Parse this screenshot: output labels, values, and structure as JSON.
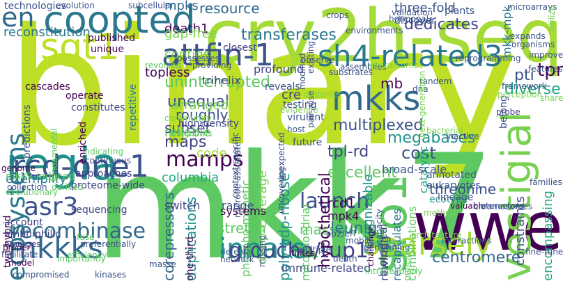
{
  "words": [
    {
      "text": "binary",
      "color": "#bddf26"
    },
    {
      "text": "mkk7",
      "color": "#5ec962"
    },
    {
      "text": "cry2h-seq",
      "color": "#a5db36"
    },
    {
      "text": "wwe",
      "color": "#440154"
    },
    {
      "text": "coopted",
      "color": "#2a788e"
    },
    {
      "text": "regia",
      "color": "#21918c"
    },
    {
      "text": "sgt1",
      "color": "#bddf26"
    },
    {
      "text": "attfin-1",
      "color": "#3b528b"
    },
    {
      "text": "sh4-related3",
      "color": "#2a788e"
    },
    {
      "text": "rcd-one1",
      "color": "#3b528b"
    },
    {
      "text": "mkks",
      "color": "#31688e"
    },
    {
      "text": "mkkks",
      "color": "#31688e"
    },
    {
      "text": "innate",
      "color": "#21918c"
    },
    {
      "text": "sro1",
      "color": "#5ec962"
    },
    {
      "text": "vestigial",
      "color": "#7ad151"
    },
    {
      "text": "sparsely",
      "color": "#a5db36"
    },
    {
      "text": "groucho/tup1",
      "color": "#414487"
    },
    {
      "text": "asr3",
      "color": "#3b528b"
    },
    {
      "text": "ecosystems",
      "color": "#2a788e"
    },
    {
      "text": "recombinase",
      "color": "#31688e"
    },
    {
      "text": "launch",
      "color": "#3b528b"
    },
    {
      "text": "mamps",
      "color": "#440154"
    },
    {
      "text": "en",
      "color": "#31688e"
    },
    {
      "text": "uninterrupted",
      "color": "#5ec962"
    },
    {
      "text": "unequal",
      "color": "#3b528b"
    },
    {
      "text": "megabases",
      "color": "#21918c"
    },
    {
      "text": "excellent",
      "color": "#5ec962"
    },
    {
      "text": "multiplexed",
      "color": "#3b528b"
    },
    {
      "text": "hypothetical",
      "color": "#440154"
    },
    {
      "text": "threonine",
      "color": "#3b528b"
    },
    {
      "text": "centromere",
      "color": "#31688e"
    },
    {
      "text": "corepressors",
      "color": "#31688e"
    },
    {
      "text": "duplications",
      "color": "#21918c"
    },
    {
      "text": "massively",
      "color": "#5ec962"
    },
    {
      "text": "leunig",
      "color": "#2a788e"
    },
    {
      "text": "tpl-rd",
      "color": "#414487"
    },
    {
      "text": "cost",
      "color": "#3b528b"
    },
    {
      "text": "transferases",
      "color": "#2a788e"
    },
    {
      "text": "mpks",
      "color": "#31688e"
    },
    {
      "text": "death1",
      "color": "#440154"
    },
    {
      "text": "resource",
      "color": "#31688e"
    },
    {
      "text": "three-fold",
      "color": "#3b528b"
    },
    {
      "text": "dedicates",
      "color": "#414487"
    },
    {
      "text": "reconstitution",
      "color": "#2a788e"
    },
    {
      "text": "technologies",
      "color": "#3b528b"
    },
    {
      "text": "exemplify",
      "color": "#2a788e"
    },
    {
      "text": "subset",
      "color": "#414487"
    },
    {
      "text": "maps",
      "color": "#414487"
    },
    {
      "text": "roughly",
      "color": "#3b528b"
    },
    {
      "text": "arranged",
      "color": "#7ad151"
    },
    {
      "text": "reliable",
      "color": "#5ec962"
    },
    {
      "text": "topless",
      "color": "#440154"
    },
    {
      "text": "repetitive",
      "color": "#2a788e"
    },
    {
      "text": "columbia",
      "color": "#22a884"
    },
    {
      "text": "code",
      "color": "#a5db36"
    },
    {
      "text": "rcd1",
      "color": "#440154"
    },
    {
      "text": "mpk4",
      "color": "#440154"
    },
    {
      "text": "tpr",
      "color": "#440154"
    },
    {
      "text": "pti",
      "color": "#3b528b"
    },
    {
      "text": "diverse",
      "color": "#22a884"
    },
    {
      "text": "stretch",
      "color": "#5ec962"
    },
    {
      "text": "contigs",
      "color": "#7ad151"
    },
    {
      "text": "gap-free",
      "color": "#7ad151"
    },
    {
      "text": "cre",
      "color": "#414487"
    },
    {
      "text": "phospho-mimetic",
      "color": "#5ec962"
    },
    {
      "text": "deep-coverage",
      "color": "#7ad151"
    },
    {
      "text": "poly-adp-ribose",
      "color": "#21918c"
    },
    {
      "text": "mkk-mpk",
      "color": "#2a788e"
    },
    {
      "text": "recognizable",
      "color": "#21918c"
    },
    {
      "text": "rewiring",
      "color": "#414487"
    },
    {
      "text": "recapitulates",
      "color": "#2a788e"
    },
    {
      "text": "constraints",
      "color": "#3b528b"
    },
    {
      "text": "combinations",
      "color": "#5ec962"
    },
    {
      "text": "encompassing",
      "color": "#22a884"
    },
    {
      "text": "immune-related",
      "color": "#414487"
    },
    {
      "text": "one-third",
      "color": "#440154"
    },
    {
      "text": "trihelix",
      "color": "#414487"
    },
    {
      "text": "belong",
      "color": "#3b528b"
    },
    {
      "text": "annotated",
      "color": "#3b528b"
    },
    {
      "text": "eukaryotes",
      "color": "#3b528b"
    },
    {
      "text": "ecotype",
      "color": "#21918c"
    },
    {
      "text": "mb",
      "color": "#440154"
    },
    {
      "text": "catalytic",
      "color": "#22a884"
    },
    {
      "text": "broad-scale",
      "color": "#3b528b"
    },
    {
      "text": "mitochondrial",
      "color": "#5ec962"
    },
    {
      "text": "biological",
      "color": "#3b528b"
    },
    {
      "text": "unique",
      "color": "#440154"
    },
    {
      "text": "published",
      "color": "#440154"
    },
    {
      "text": "cascades",
      "color": "#440154"
    },
    {
      "text": "operate",
      "color": "#440154"
    },
    {
      "text": "constitutes",
      "color": "#414487"
    },
    {
      "text": "enriched",
      "color": "#440154"
    },
    {
      "text": "predictions",
      "color": "#3b528b"
    },
    {
      "text": "two-hybrid",
      "color": "#440154"
    },
    {
      "text": "genome",
      "color": "#440154"
    },
    {
      "text": "mkk9-induced",
      "color": "#5ec962"
    },
    {
      "text": "approaches",
      "color": "#414487"
    },
    {
      "text": "proteome-wide",
      "color": "#414487"
    },
    {
      "text": "sequencing",
      "color": "#414487"
    },
    {
      "text": "account",
      "color": "#414487"
    },
    {
      "text": "amphiphilic",
      "color": "#414487"
    },
    {
      "text": "emerges",
      "color": "#414487"
    },
    {
      "text": "facilitate",
      "color": "#414487"
    },
    {
      "text": "range",
      "color": "#3b528b"
    },
    {
      "text": "systems",
      "color": "#440154"
    },
    {
      "text": "defense",
      "color": "#31688e"
    },
    {
      "text": "network",
      "color": "#3b528b"
    },
    {
      "text": "switch",
      "color": "#414487"
    },
    {
      "text": "high-density",
      "color": "#414487"
    },
    {
      "text": "testing",
      "color": "#3b528b"
    },
    {
      "text": "reveals",
      "color": "#3b528b"
    },
    {
      "text": "virulent",
      "color": "#3b528b"
    },
    {
      "text": "future",
      "color": "#3b528b"
    },
    {
      "text": "host",
      "color": "#3b528b"
    },
    {
      "text": "profound",
      "color": "#414487"
    },
    {
      "text": "closest",
      "color": "#414487"
    },
    {
      "text": "evolution",
      "color": "#3b528b"
    },
    {
      "text": "subcellular",
      "color": "#3b528b"
    },
    {
      "text": "crops",
      "color": "#3b528b"
    },
    {
      "text": "hormonal",
      "color": "#3b528b"
    },
    {
      "text": "validation",
      "color": "#3b528b"
    },
    {
      "text": "discover",
      "color": "#3b528b"
    },
    {
      "text": "plants",
      "color": "#3b528b"
    },
    {
      "text": "microarrays",
      "color": "#3b528b"
    },
    {
      "text": "expands",
      "color": "#3b528b"
    },
    {
      "text": "improve",
      "color": "#3b528b"
    },
    {
      "text": "organisms",
      "color": "#3b528b"
    },
    {
      "text": "features",
      "color": "#3b528b"
    },
    {
      "text": "framework",
      "color": "#3b528b"
    },
    {
      "text": "perception",
      "color": "#7ad151"
    },
    {
      "text": "probe",
      "color": "#414487"
    },
    {
      "text": "share",
      "color": "#7ad151"
    },
    {
      "text": "utilize",
      "color": "#7ad151"
    },
    {
      "text": "environments",
      "color": "#3b528b"
    },
    {
      "text": "assemblies",
      "color": "#3b528b"
    },
    {
      "text": "interactome",
      "color": "#7ad151"
    },
    {
      "text": "tandem",
      "color": "#3b528b"
    },
    {
      "text": "dna",
      "color": "#3b528b"
    },
    {
      "text": "next-generation",
      "color": "#7ad151"
    },
    {
      "text": "underlie",
      "color": "#7ad151"
    },
    {
      "text": "uncovering",
      "color": "#3b528b"
    },
    {
      "text": "unexpected",
      "color": "#3b528b"
    },
    {
      "text": "context-specific",
      "color": "#3b528b"
    },
    {
      "text": "microbe-associated",
      "color": "#3b528b"
    },
    {
      "text": "possesses",
      "color": "#3b528b"
    },
    {
      "text": "kingdoms",
      "color": "#5ec962"
    },
    {
      "text": "community",
      "color": "#7ad151"
    },
    {
      "text": "fundamental",
      "color": "#5ec962"
    },
    {
      "text": "continuous",
      "color": "#3b528b"
    },
    {
      "text": "preferentially",
      "color": "#3b528b"
    },
    {
      "text": "efficiency",
      "color": "#5ec962"
    },
    {
      "text": "indicating",
      "color": "#5ec962"
    },
    {
      "text": "derived",
      "color": "#5ec962"
    },
    {
      "text": "evolutionary",
      "color": "#5ec962"
    },
    {
      "text": "proper",
      "color": "#440154"
    },
    {
      "text": "model",
      "color": "#440154"
    },
    {
      "text": "fuse",
      "color": "#5ec962"
    },
    {
      "text": "compromised",
      "color": "#3b528b"
    },
    {
      "text": "kinases",
      "color": "#3b528b"
    },
    {
      "text": "masse",
      "color": "#3b528b"
    },
    {
      "text": "importantly",
      "color": "#5ec962"
    },
    {
      "text": "intracellularly",
      "color": "#5ec962"
    },
    {
      "text": "times",
      "color": "#440154"
    },
    {
      "text": "multiple",
      "color": "#3b528b"
    },
    {
      "text": "death",
      "color": "#3b528b"
    },
    {
      "text": "ap2/erf",
      "color": "#3b528b"
    },
    {
      "text": "performing",
      "color": "#3b528b"
    },
    {
      "text": "challenge",
      "color": "#440154"
    },
    {
      "text": "principle",
      "color": "#5ec962"
    },
    {
      "text": "interactions",
      "color": "#3b528b"
    },
    {
      "text": "valuable",
      "color": "#440154"
    },
    {
      "text": "interactors",
      "color": "#3b528b"
    },
    {
      "text": "lineage",
      "color": "#3b528b"
    },
    {
      "text": "chromosomes",
      "color": "#3b528b"
    },
    {
      "text": "families",
      "color": "#3b528b"
    },
    {
      "text": "fine-tune",
      "color": "#3b528b"
    },
    {
      "text": "bacterial",
      "color": "#7ad151"
    },
    {
      "text": "inactive",
      "color": "#3b528b"
    },
    {
      "text": "capacity",
      "color": "#3b528b"
    },
    {
      "text": "missing",
      "color": "#3b528b"
    },
    {
      "text": "mobile",
      "color": "#3b528b"
    },
    {
      "text": "collection",
      "color": "#3b528b"
    },
    {
      "text": "observe",
      "color": "#3b528b"
    },
    {
      "text": "substrates",
      "color": "#3b528b"
    },
    {
      "text": "existing",
      "color": "#3b528b"
    },
    {
      "text": "pair-wise",
      "color": "#3b528b"
    },
    {
      "text": "modified",
      "color": "#3b528b"
    },
    {
      "text": "providing",
      "color": "#3b528b"
    },
    {
      "text": "revolved",
      "color": "#5ec962"
    },
    {
      "text": "evidence",
      "color": "#7ad151"
    },
    {
      "text": "method",
      "color": "#7ad151"
    },
    {
      "text": "architecture",
      "color": "#7ad151"
    },
    {
      "text": "reprogramming",
      "color": "#3b528b"
    }
  ]
}
